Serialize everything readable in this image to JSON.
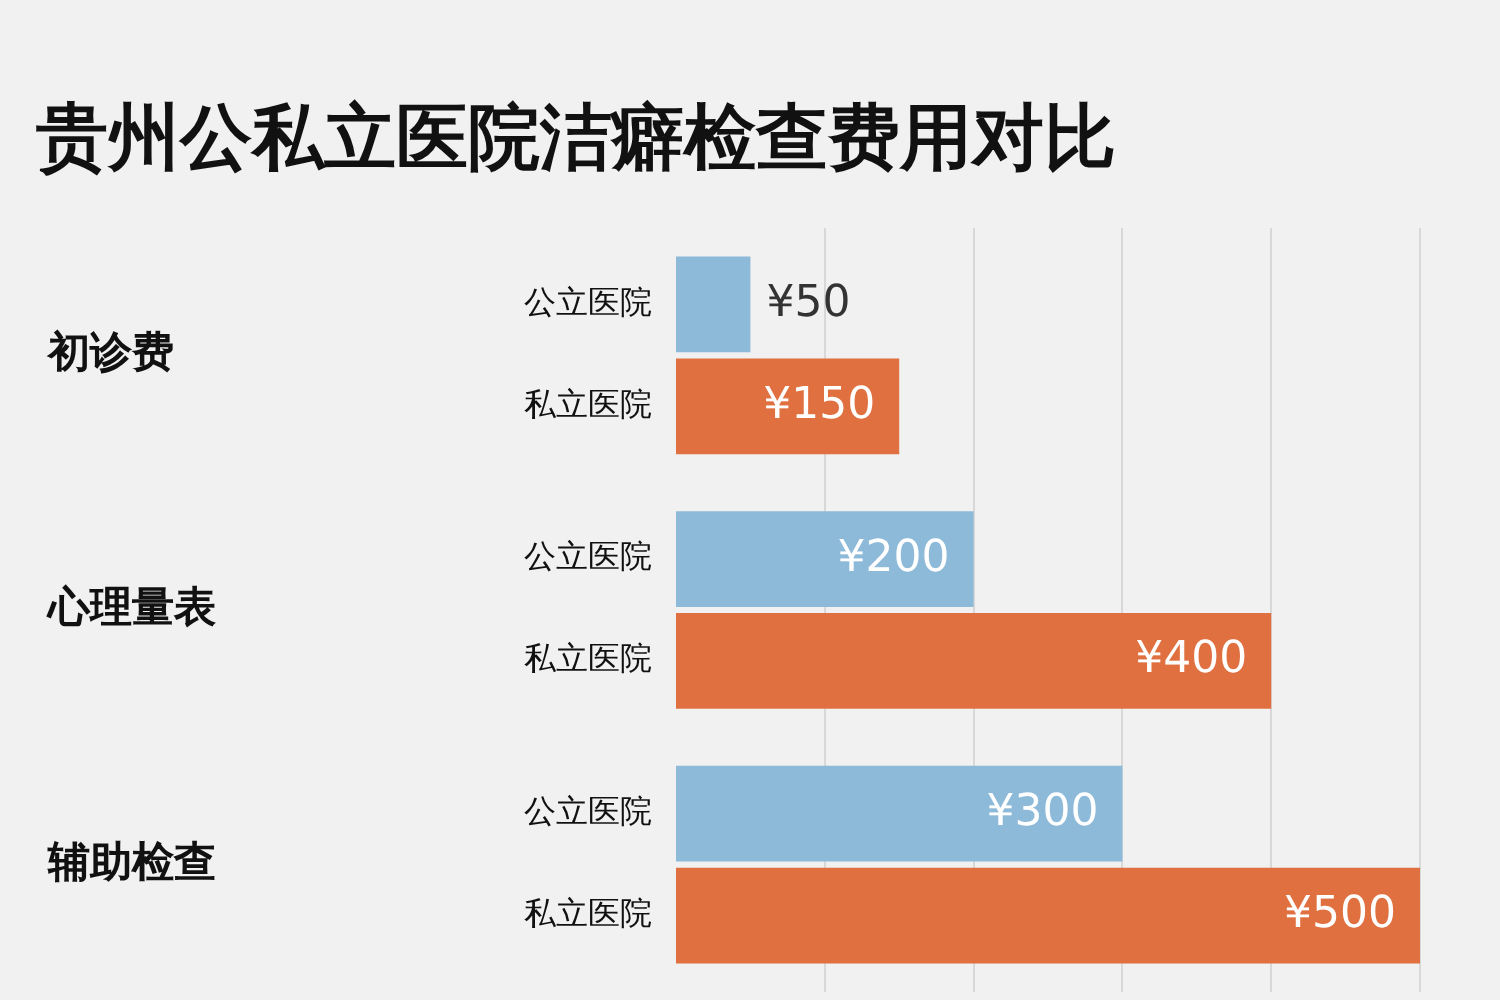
{
  "chart_data": {
    "type": "bar",
    "orientation": "horizontal",
    "title": "贵州公私立医院洁癖检查费用对比",
    "categories": [
      "初诊费",
      "心理量表",
      "辅助检查"
    ],
    "series": [
      {
        "name": "公立医院",
        "color": "#8dbad9",
        "values": [
          50,
          200,
          300
        ],
        "value_labels": [
          "¥50",
          "¥200",
          "¥300"
        ]
      },
      {
        "name": "私立医院",
        "color": "#e0703f",
        "values": [
          150,
          400,
          500
        ],
        "value_labels": [
          "¥150",
          "¥400",
          "¥500"
        ]
      }
    ],
    "xticks": [
      {
        "value": 100,
        "label": null
      },
      {
        "value": 200,
        "label": null
      },
      {
        "value": 300,
        "label": null
      },
      {
        "value": 400,
        "label": null
      },
      {
        "value": 500,
        "label": null
      }
    ],
    "grid": "x",
    "tick_labels": "y"
  }
}
